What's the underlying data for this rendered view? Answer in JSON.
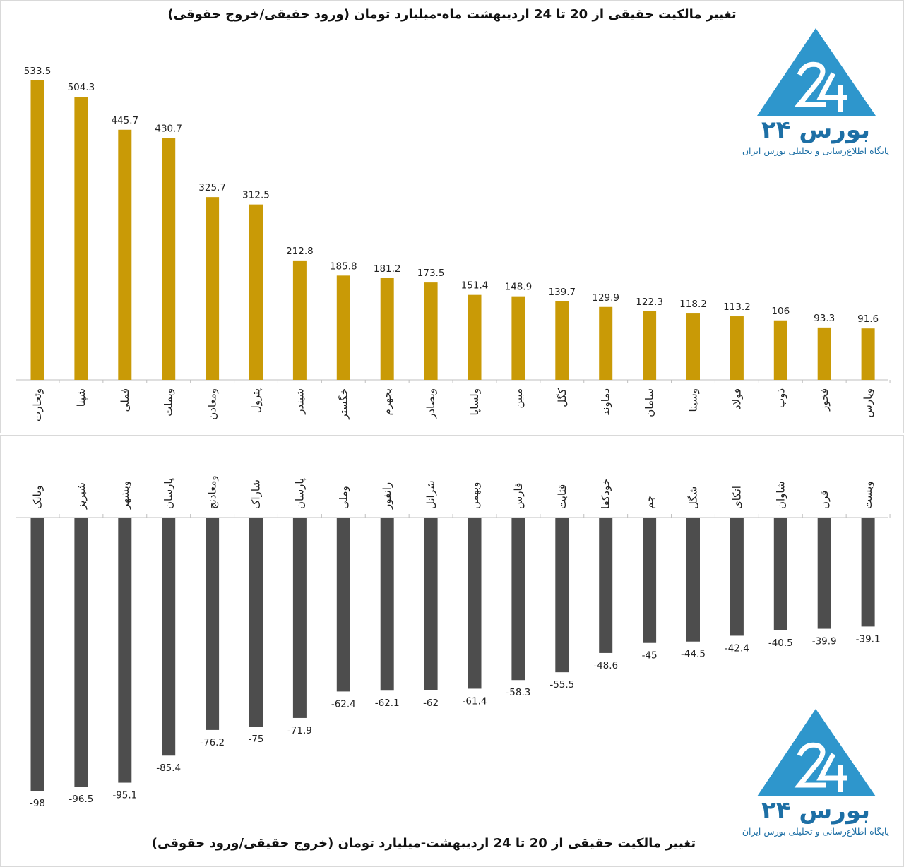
{
  "titles": {
    "top": "تغییر مالکیت حقیقی از 20 تا 24 اردیبهشت ماه-میلیارد تومان (ورود حقیقی/خروج حقوقی)",
    "bottom": "تغییر مالکیت حقیقی از 20 تا 24 اردیبهشت-میلیارد تومان (خروج حقیقی/ورود حقوقی)"
  },
  "logo": {
    "name": "بورس ۲۴",
    "tagline": "پایگاه اطلاع‌رسانی و تحلیلی بورس ایران"
  },
  "colors": {
    "positive": "#c99a06",
    "negative": "#4d4d4d",
    "logo": "#2e96cc"
  },
  "chart_data": [
    {
      "type": "bar",
      "title": "تغییر مالکیت حقیقی از 20 تا 24 اردیبهشت ماه-میلیارد تومان (ورود حقیقی/خروج حقوقی)",
      "categories": [
        "وتجارت",
        "شپنا",
        "فملی",
        "وبملت",
        "ومعادن",
        "پترول",
        "شبندر",
        "خگستر",
        "بجهرم",
        "وبصادر",
        "ولساپا",
        "مبین",
        "کگل",
        "دماوند",
        "سامان",
        "وسینا",
        "فولاد",
        "ذوب",
        "فخوز",
        "وپارس"
      ],
      "values": [
        533.5,
        504.3,
        445.7,
        430.7,
        325.7,
        312.5,
        212.8,
        185.8,
        181.2,
        173.5,
        151.4,
        148.9,
        139.7,
        129.9,
        122.3,
        118.2,
        113.2,
        106,
        93.3,
        91.6
      ],
      "labels": [
        "533.5",
        "504.3",
        "445.7",
        "430.7",
        "325.7",
        "312.5",
        "212.8",
        "185.8",
        "181.2",
        "173.5",
        "151.4",
        "148.9",
        "139.7",
        "129.9",
        "122.3",
        "118.2",
        "113.2",
        "106",
        "93.3",
        "91.6"
      ],
      "color": "#c99a06",
      "ylim": [
        0,
        533.5
      ],
      "grid": false
    },
    {
      "type": "bar",
      "title": "تغییر مالکیت حقیقی از 20 تا 24 اردیبهشت-میلیارد تومان (خروج حقیقی/ورود حقوقی)",
      "categories": [
        "وبانک",
        "شبریز",
        "وبشهر",
        "پارسان",
        "ومعادنج",
        "شاراک",
        "پارسان",
        "وملی",
        "رانفور",
        "شرانل",
        "وبهمن",
        "فارس",
        "قثابت",
        "خودکفا",
        "جم",
        "شگل",
        "اتکای",
        "شاوان",
        "قرن",
        "وبست"
      ],
      "values": [
        -98,
        -96.5,
        -95.1,
        -85.4,
        -76.2,
        -75,
        -71.9,
        -62.4,
        -62.1,
        -62,
        -61.4,
        -58.3,
        -55.5,
        -48.6,
        -45,
        -44.5,
        -42.4,
        -40.5,
        -39.9,
        -39.1
      ],
      "labels": [
        "-98",
        "-96.5",
        "-95.1",
        "-85.4",
        "-76.2",
        "-75",
        "-71.9",
        "-62.4",
        "-62.1",
        "-62",
        "-61.4",
        "-58.3",
        "-55.5",
        "-48.6",
        "-45",
        "-44.5",
        "-42.4",
        "-40.5",
        "-39.9",
        "-39.1"
      ],
      "color": "#4d4d4d",
      "ylim": [
        -98,
        0
      ],
      "grid": false
    }
  ]
}
